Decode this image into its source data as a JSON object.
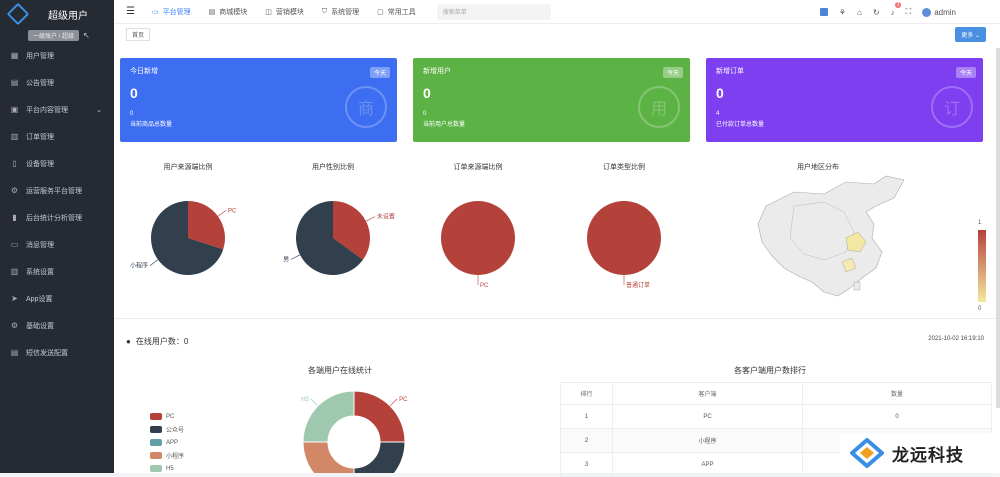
{
  "app": {
    "title": "超级用户",
    "role": "一级账户 / 超级"
  },
  "sidebar": {
    "items": [
      {
        "label": "用户管理",
        "icon": "grid-icon"
      },
      {
        "label": "公告管理",
        "icon": "doc-icon"
      },
      {
        "label": "平台内容管理",
        "icon": "box-icon",
        "has_sub": true
      },
      {
        "label": "订单管理",
        "icon": "list-icon"
      },
      {
        "label": "设备管理",
        "icon": "phone-icon"
      },
      {
        "label": "运营服务平台管理",
        "icon": "gear-icon"
      },
      {
        "label": "后台统计分析管理",
        "icon": "bar-icon"
      },
      {
        "label": "消息管理",
        "icon": "chat-icon"
      },
      {
        "label": "系统设置",
        "icon": "list-icon"
      },
      {
        "label": "App设置",
        "icon": "send-icon"
      },
      {
        "label": "基础设置",
        "icon": "gear-icon"
      },
      {
        "label": "短信发送配置",
        "icon": "doc-icon"
      }
    ]
  },
  "topnav": {
    "items": [
      "平台管理",
      "商城模块",
      "营销模块",
      "系统管理",
      "常用工具"
    ],
    "search_placeholder": "搜索菜单",
    "user": "admin",
    "badge": "3"
  },
  "tabs": {
    "home": "首页",
    "more": "更多 ⌄"
  },
  "cards": [
    {
      "title": "今日新增",
      "tag": "今天",
      "value": "0",
      "sub_value": "0",
      "sub_label": "当前商品总数量",
      "color": "#3d6ef2",
      "wm": "商"
    },
    {
      "title": "新增用户",
      "tag": "今天",
      "value": "0",
      "sub_value": "0",
      "sub_label": "当前用户总数量",
      "color": "#5cb245",
      "wm": "用"
    },
    {
      "title": "新增订单",
      "tag": "今天",
      "value": "0",
      "sub_value": "4",
      "sub_label": "已付款订单总数量",
      "color": "#7d3ff0",
      "wm": "订"
    }
  ],
  "charts": {
    "pies": [
      {
        "title": "用户来源端比例",
        "slices": [
          {
            "label": "PC",
            "value": 30,
            "color": "#b5413b"
          },
          {
            "label": "小程序",
            "value": 70,
            "color": "#323f4d"
          }
        ]
      },
      {
        "title": "用户性别比例",
        "slices": [
          {
            "label": "未设置",
            "value": 35,
            "color": "#b5413b"
          },
          {
            "label": "男",
            "value": 65,
            "color": "#323f4d"
          }
        ]
      },
      {
        "title": "订单来源端比例",
        "slices": [
          {
            "label": "PC",
            "value": 100,
            "color": "#b5413b"
          }
        ]
      },
      {
        "title": "订单类型比例",
        "slices": [
          {
            "label": "普通订单",
            "value": 100,
            "color": "#b5413b"
          }
        ]
      }
    ],
    "map": {
      "title": "用户地区分布",
      "scale_max": "1",
      "scale_min": "0"
    }
  },
  "online": {
    "label": "在线用户数：0",
    "datetime": "2021-10-02 16:19:10"
  },
  "donut": {
    "title": "各端用户在线统计",
    "slices": [
      {
        "label": "PC",
        "value": 25,
        "color": "#b5413b"
      },
      {
        "label": "公众号",
        "value": 25,
        "color": "#323f4d"
      },
      {
        "label": "APP",
        "value": 0,
        "color": "#62a0a8"
      },
      {
        "label": "小程序",
        "value": 25,
        "color": "#d28867"
      },
      {
        "label": "H5",
        "value": 25,
        "color": "#9fc9ae"
      }
    ]
  },
  "rank": {
    "title": "各客户端用户数排行",
    "headers": [
      "排行",
      "客户端",
      "数量"
    ],
    "rows": [
      [
        "1",
        "PC",
        "0"
      ],
      [
        "2",
        "小程序",
        "0"
      ],
      [
        "3",
        "APP",
        "0"
      ]
    ]
  },
  "brand": {
    "name": "龙远科技"
  }
}
